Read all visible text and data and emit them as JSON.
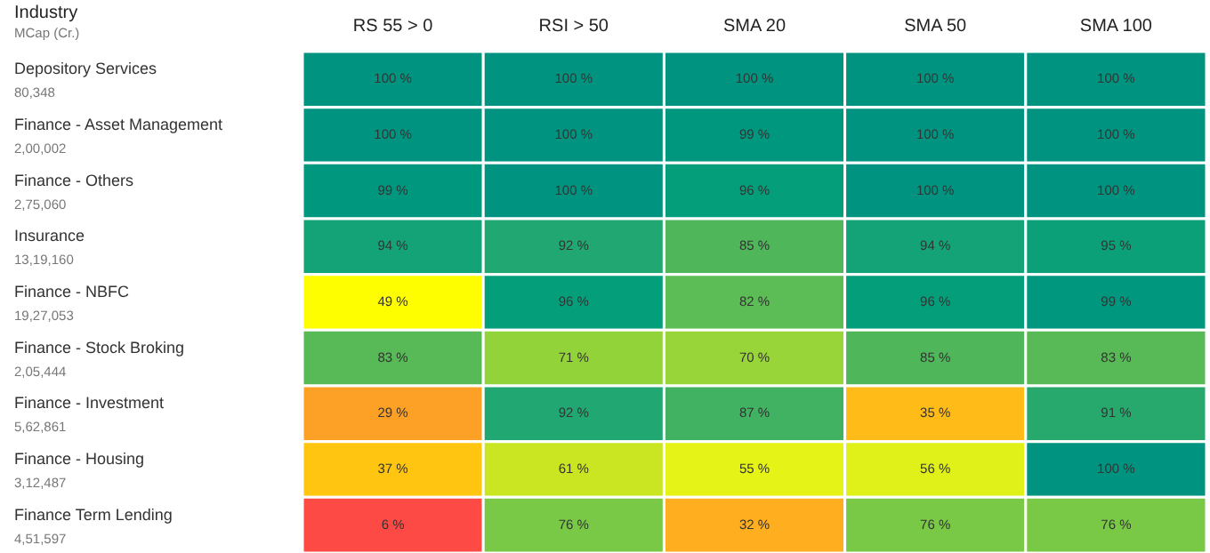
{
  "chart_data": {
    "type": "heatmap",
    "ylabel": "Industry",
    "y2label": "MCap (Cr.)",
    "categories": [
      "RS 55 > 0",
      "RSI > 50",
      "SMA 20",
      "SMA 50",
      "SMA 100"
    ],
    "y_categories": [
      "Depository Services",
      "Finance - Asset Management",
      "Finance - Others",
      "Insurance",
      "Finance - NBFC",
      "Finance - Stock Broking",
      "Finance - Investment",
      "Finance - Housing",
      "Finance Term Lending"
    ],
    "y2_categories": [
      "80,348",
      "2,00,002",
      "2,75,060",
      "13,19,160",
      "19,27,053",
      "2,05,444",
      "5,62,861",
      "3,12,487",
      "4,51,597"
    ],
    "cells": [
      [
        100,
        100,
        100,
        100,
        100
      ],
      [
        100,
        100,
        99,
        100,
        100
      ],
      [
        99,
        100,
        96,
        100,
        100
      ],
      [
        94,
        92,
        85,
        94,
        95
      ],
      [
        49,
        96,
        82,
        96,
        99
      ],
      [
        83,
        71,
        70,
        85,
        83
      ],
      [
        29,
        92,
        87,
        35,
        91
      ],
      [
        37,
        61,
        55,
        56,
        100
      ],
      [
        6,
        76,
        32,
        76,
        76
      ]
    ],
    "cell_labels": [
      [
        "100 %",
        "100 %",
        "100 %",
        "100 %",
        "100 %"
      ],
      [
        "100 %",
        "100 %",
        "99 %",
        "100 %",
        "100 %"
      ],
      [
        "99 %",
        "100 %",
        "96 %",
        "100 %",
        "100 %"
      ],
      [
        "94 %",
        "92 %",
        "85 %",
        "94 %",
        "95 %"
      ],
      [
        "49 %",
        "96 %",
        "82 %",
        "96 %",
        "99 %"
      ],
      [
        "83 %",
        "71 %",
        "70 %",
        "85 %",
        "83 %"
      ],
      [
        "29 %",
        "92 %",
        "87 %",
        "35 %",
        "91 %"
      ],
      [
        "37 %",
        "61 %",
        "55 %",
        "56 %",
        "100 %"
      ],
      [
        "6 %",
        "76 %",
        "32 %",
        "76 %",
        "76 %"
      ]
    ]
  }
}
